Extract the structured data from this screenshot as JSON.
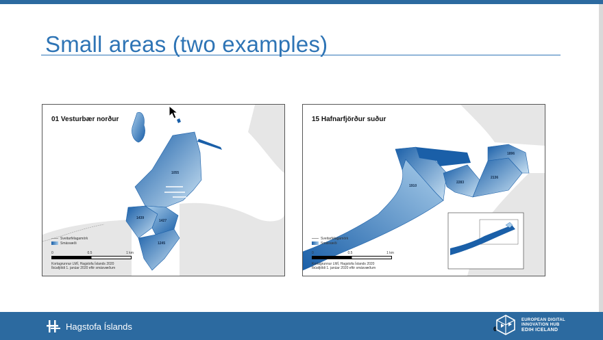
{
  "slide": {
    "title": "Small areas (two examples)",
    "page_number": "6"
  },
  "maps": [
    {
      "title": "01 Vesturbær norður",
      "areas": [
        "1055",
        "1439",
        "1427",
        "1245"
      ],
      "legend": [
        "Sveitarfélagamörk",
        "Smásvæði"
      ],
      "scale": [
        "0",
        "0.5",
        "1 km"
      ],
      "credit": [
        "Kortagrunnur LMÍ, Hagstofa Íslands 2020",
        "Íbúafjöldi 1. janúar 2020 eftir smásvæðum"
      ]
    },
    {
      "title": "15 Hafnarfjörður suður",
      "areas": [
        "1896",
        "2283",
        "2136",
        "1910"
      ],
      "legend": [
        "Sveitarfélagamörk",
        "Smásvæði"
      ],
      "scale": [
        "0",
        "0.5",
        "1 km"
      ],
      "credit": [
        "Kortagrunnur LMÍ, Hagstofa Íslands 2020",
        "Íbúafjöldi 1. janúar 2020 eftir smásvæðum"
      ]
    }
  ],
  "footer": {
    "brand": "Hagstofa Íslands",
    "edih": [
      "EUROPEAN DIGITAL",
      "INNOVATION HUB",
      "EDIH ICELAND"
    ]
  },
  "colors": {
    "accent": "#2c6aa0",
    "title": "#2e74b5"
  }
}
